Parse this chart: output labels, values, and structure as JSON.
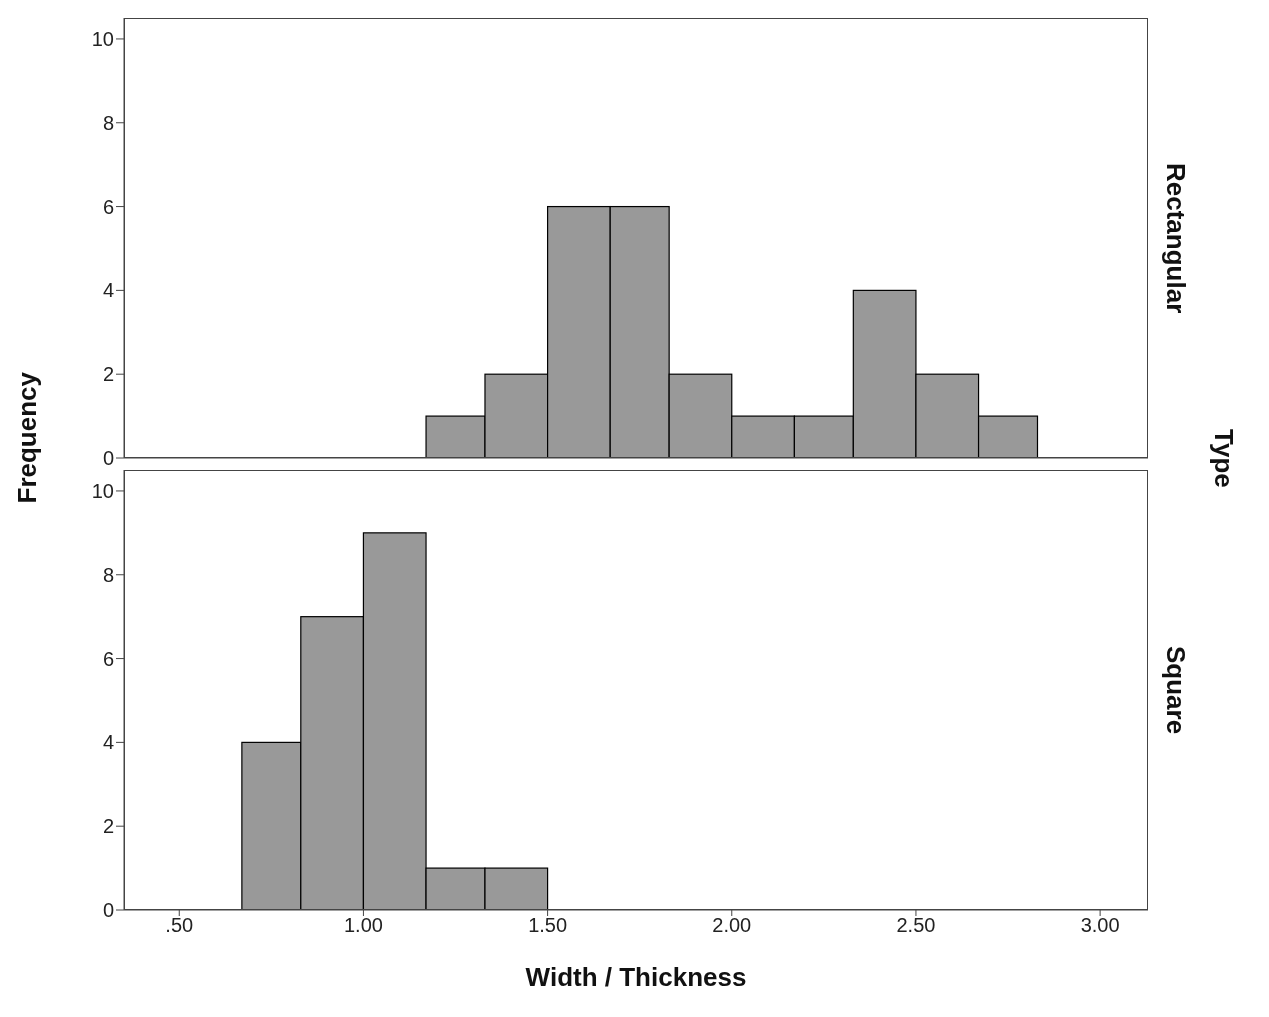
{
  "chart_data": [
    {
      "type": "histogram",
      "title": "Rectangular",
      "ylabel": "Frequency",
      "annotations": [
        "Type"
      ],
      "color": "#999999",
      "bins": [
        1.17,
        1.33,
        1.5,
        1.67,
        1.83,
        2.0,
        2.17,
        2.33,
        2.5,
        2.67,
        2.83
      ],
      "values": [
        1,
        2,
        6,
        6,
        2,
        1,
        1,
        4,
        2,
        1
      ],
      "xlim": [
        0.35,
        3.13
      ],
      "ylim": [
        0,
        10.5
      ],
      "yticks": [
        0,
        2,
        4,
        6,
        8,
        10
      ],
      "grid": false,
      "tick_labels": "y"
    },
    {
      "type": "histogram",
      "title": "Square",
      "xlabel": "Width / Thickness",
      "color": "#999999",
      "bins": [
        0.67,
        0.83,
        1.0,
        1.17,
        1.33,
        1.5
      ],
      "values": [
        4,
        7,
        9,
        1,
        1
      ],
      "xlim": [
        0.35,
        3.13
      ],
      "xticks": [
        {
          "value": 0.5,
          "label": ".50"
        },
        {
          "value": 1,
          "label": "1.00"
        },
        {
          "value": 1.5,
          "label": "1.50"
        },
        {
          "value": 2,
          "label": "2.00"
        },
        {
          "value": 2.5,
          "label": "2.50"
        },
        {
          "value": 3,
          "label": "3.00"
        }
      ],
      "ylim": [
        0,
        10.5
      ],
      "yticks": [
        0,
        2,
        4,
        6,
        8,
        10
      ],
      "grid": false
    }
  ]
}
